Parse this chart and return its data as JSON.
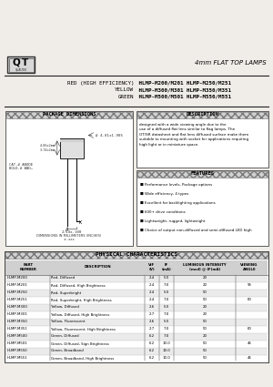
{
  "title": "4mm FLAT TOP LAMPS",
  "bg_color": "#f0ede8",
  "logo_text": "QT",
  "logo_sub": "QUALTEK",
  "part_lines": [
    [
      "RED (HIGH EFFICIENCY)",
      " HLMP-M200/M201 HLMP-M250/M251"
    ],
    [
      "YELLOW",
      " HLMP-M300/M301 HLMP-M350/M351"
    ],
    [
      "GREEN",
      " HLMP-M500/M501 HLMP-M550/M551"
    ]
  ],
  "pkg_title": "PACKAGE DIMENSIONS",
  "desc_title": "DESCRIPTION",
  "desc_text": "designed with a wide viewing angle due to the\nuse of a diffused flat lens similar to flag lamps. The\nOT/SR datasheet and flat lens diffused surface make them\nsuitable to mounting with socket for applications requiring\nhigh light or in miniature space.",
  "feat_title": "FEATURES",
  "features": [
    "Performance levels, Package options",
    "Wide efficiency, 4 types",
    "Excellent for backlighting applications",
    "600+ drive conditions",
    "Lightweight, rugged, lightweight",
    "Choice of output non-diffused and semi-diffused LED high"
  ],
  "phys_title": "PHYSICAL CHARACTERISTICS",
  "table_col_headers": [
    "PART\nNUMBER",
    "DESCRIPTION",
    "VIF\n(V)",
    "IF\n(mA)",
    "LUMINOUS INTENSITY\n(mcd) @ IF(mA)",
    "VIEWING\nANGLE"
  ],
  "table_rows": [
    [
      "HLMP-M200",
      "Red, Diffused",
      "2.4",
      "5.0",
      "20",
      ""
    ],
    [
      "HLMP-M201",
      "Red, Diffused, High Brightness",
      "2.4",
      "7.0",
      "20",
      "95"
    ],
    [
      "HLMP-M250",
      "Red, Superbright",
      "2.4",
      "5.0",
      "50",
      ""
    ],
    [
      "HLMP-M251",
      "Red, Superbright, High Brightness",
      "2.4",
      "7.0",
      "50",
      "60"
    ],
    [
      "HLMP-M300",
      "Yellow, Diffused",
      "2.6",
      "5.0",
      "20",
      ""
    ],
    [
      "HLMP-M301",
      "Yellow, Diffused, High Brightness",
      "2.7",
      "7.0",
      "20",
      ""
    ],
    [
      "HLMP-M350",
      "Yellow, Fluorescent",
      "2.6",
      "5.0",
      "50",
      ""
    ],
    [
      "HLMP-M351",
      "Yellow, Fluorescent, High Brightness",
      "2.7",
      "7.0",
      "50",
      "60"
    ],
    [
      "HLMP-M500",
      "Green, Diffused",
      "6.2",
      "7.0",
      "20",
      ""
    ],
    [
      "HLMP-M501",
      "Green, Diffused, Sign Brightness",
      "6.2",
      "10.0",
      "50",
      "45"
    ],
    [
      "HLMP-M550",
      "Green, Broadband",
      "6.2",
      "10.0",
      "50",
      ""
    ],
    [
      "HLMP-M551",
      "Green, Broadband, High Brightness",
      "6.2",
      "10.0",
      "50",
      "45"
    ]
  ],
  "dim_notes": [
    "DIMENSIONS IN MILLIMETERS (INCHES)",
    "± .xxx"
  ]
}
